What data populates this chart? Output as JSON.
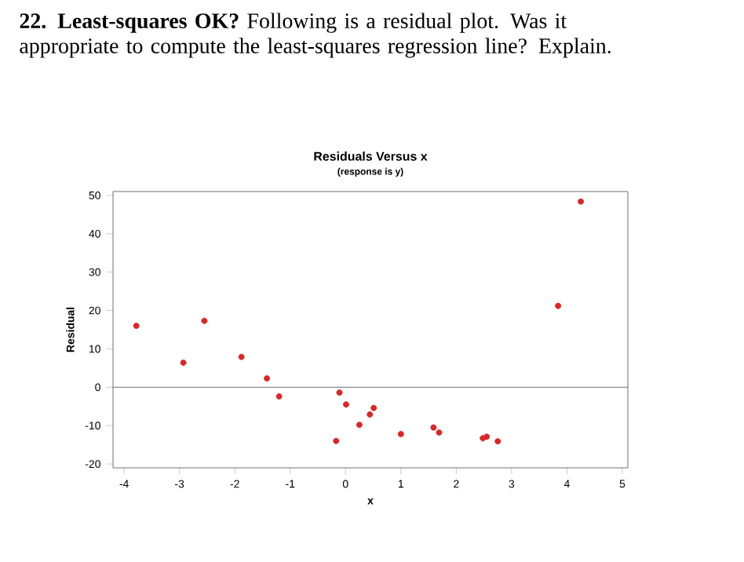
{
  "chart_data": {
    "type": "scatter",
    "title": "Residuals Versus x",
    "subtitle": "(response is y)",
    "xlabel": "x",
    "ylabel": "Residual",
    "annotations": [
      "**22. Least-squares OK?** Following is a residual plot. Was it appropriate to compute the least-squares regression line? Explain."
    ],
    "x": [
      -3.78,
      -2.93,
      -2.55,
      -1.88,
      -1.42,
      -1.2,
      -0.17,
      -0.11,
      0.01,
      0.25,
      0.44,
      0.51,
      1.0,
      1.59,
      1.69,
      2.48,
      2.55,
      2.75,
      3.84,
      4.25
    ],
    "series": [
      {
        "color": "#d62828",
        "values": [
          16,
          6.4,
          17.3,
          7.9,
          2.3,
          -2.4,
          -14,
          -1.4,
          -4.5,
          -9.8,
          -7.1,
          -5.4,
          -12.2,
          -10.5,
          -11.8,
          -13.3,
          -12.9,
          -14.1,
          21.2,
          48.4
        ]
      }
    ],
    "xlim": [
      -4.2,
      5.1
    ],
    "ylim": [
      -21,
      51
    ],
    "xticks": [
      -4,
      -3,
      -2,
      -1,
      0,
      1,
      2,
      3,
      4,
      5
    ],
    "yticks": [
      -20,
      -10,
      0,
      10,
      20,
      30,
      40,
      50
    ],
    "ref_lines": [
      {
        "axis": "y",
        "value": 0
      }
    ],
    "marker": "circle",
    "grid": false
  }
}
